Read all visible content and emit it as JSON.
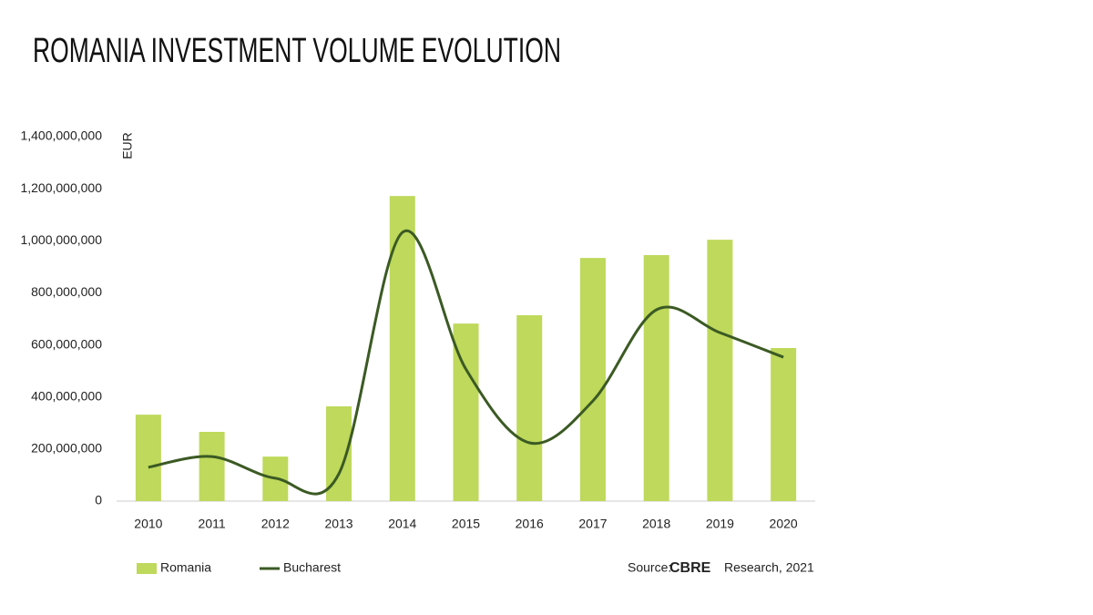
{
  "chart_data": {
    "type": "bar",
    "title": "ROMANIA INVESTMENT VOLUME EVOLUTION",
    "y_label": "EUR",
    "categories": [
      "2010",
      "2011",
      "2012",
      "2013",
      "2014",
      "2015",
      "2016",
      "2017",
      "2018",
      "2019",
      "2020"
    ],
    "series": [
      {
        "name": "Romania",
        "type": "bar",
        "color": "#bed95b",
        "values": [
          332000000,
          266000000,
          171000000,
          364000000,
          1172000000,
          682000000,
          714000000,
          934000000,
          945000000,
          1004000000,
          588000000
        ]
      },
      {
        "name": "Bucharest",
        "type": "line",
        "color": "#3b5a24",
        "values": [
          130000000,
          171000000,
          88000000,
          105000000,
          1032000000,
          507000000,
          224000000,
          385000000,
          735000000,
          647000000,
          553000000
        ]
      }
    ],
    "ylim": [
      0,
      1400000000
    ],
    "yticks": [
      0,
      {
        "value": 200000000,
        "label": "200,000,000"
      },
      {
        "value": 400000000,
        "label": "400,000,000"
      },
      {
        "value": 600000000,
        "label": "600,000,000"
      },
      {
        "value": 800000000,
        "label": "800,000,000"
      },
      {
        "value": 1000000000,
        "label": "1,000,000,000"
      },
      {
        "value": 1200000000,
        "label": "1,200,000,000"
      },
      {
        "value": 1400000000,
        "label": "1,400,000,000"
      }
    ],
    "grid": false,
    "source": [
      "Source:",
      "CBRE",
      "Research, 2021"
    ]
  }
}
